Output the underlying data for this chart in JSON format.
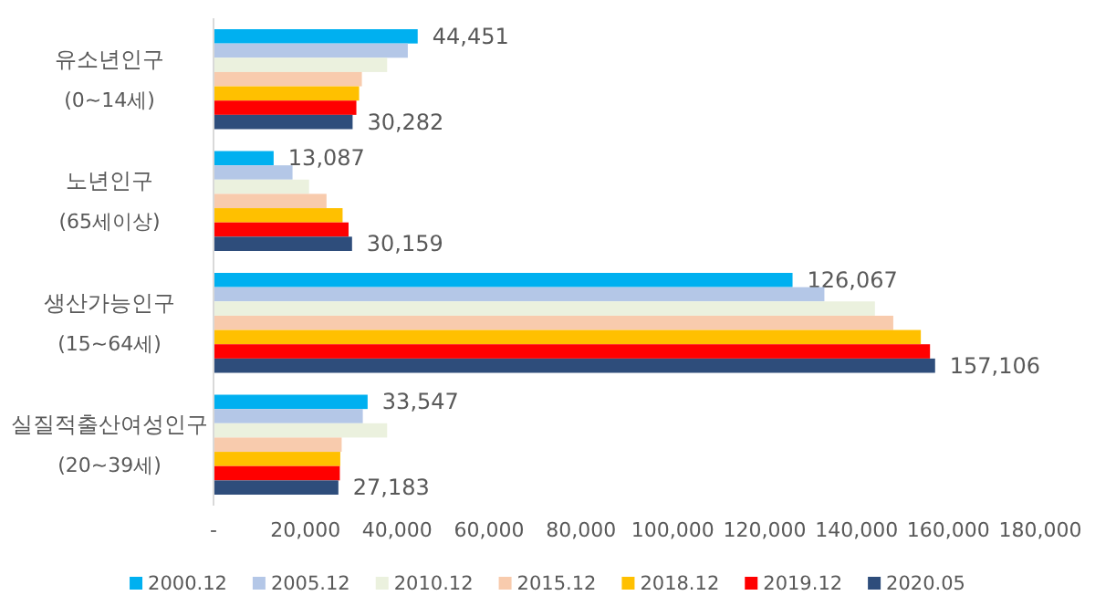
{
  "chart_data": {
    "type": "bar",
    "orientation": "horizontal",
    "categories": [
      "유소년인구\n(0~14세)",
      "노년인구\n(65세이상)",
      "생산가능인구\n(15~64세)",
      "실질적출산여성인구\n(20~39세)"
    ],
    "series": [
      {
        "name": "2000.12",
        "color": "#00b0f0",
        "values": [
          44451,
          13087,
          126067,
          33547
        ],
        "value_labels": [
          "44,451",
          "13,087",
          "126,067",
          "33,547"
        ]
      },
      {
        "name": "2005.12",
        "color": "#b4c7e7",
        "values": [
          42300,
          17200,
          133000,
          32500
        ]
      },
      {
        "name": "2010.12",
        "color": "#ebf1de",
        "values": [
          37800,
          20800,
          144000,
          37800
        ]
      },
      {
        "name": "2015.12",
        "color": "#f8cbad",
        "values": [
          32300,
          24600,
          148000,
          27900
        ]
      },
      {
        "name": "2018.12",
        "color": "#ffc000",
        "values": [
          31700,
          28100,
          154000,
          27600
        ]
      },
      {
        "name": "2019.12",
        "color": "#ff0000",
        "values": [
          31100,
          29400,
          156000,
          27500
        ]
      },
      {
        "name": "2020.05",
        "color": "#2e4d7b",
        "values": [
          30282,
          30159,
          157106,
          27183
        ],
        "value_labels": [
          "30,282",
          "30,159",
          "157,106",
          "27,183"
        ]
      }
    ],
    "xlim": [
      0,
      180000
    ],
    "xticks": [
      {
        "value": 0,
        "label": "-"
      },
      {
        "value": 20000,
        "label": "20,000"
      },
      {
        "value": 40000,
        "label": "40,000"
      },
      {
        "value": 60000,
        "label": "60,000"
      },
      {
        "value": 80000,
        "label": "80,000"
      },
      {
        "value": 100000,
        "label": "100,000"
      },
      {
        "value": 120000,
        "label": "120,000"
      },
      {
        "value": 140000,
        "label": "140,000"
      },
      {
        "value": 160000,
        "label": "160,000"
      },
      {
        "value": 180000,
        "label": "180,000"
      }
    ],
    "grid": false,
    "legend": "bottom"
  }
}
